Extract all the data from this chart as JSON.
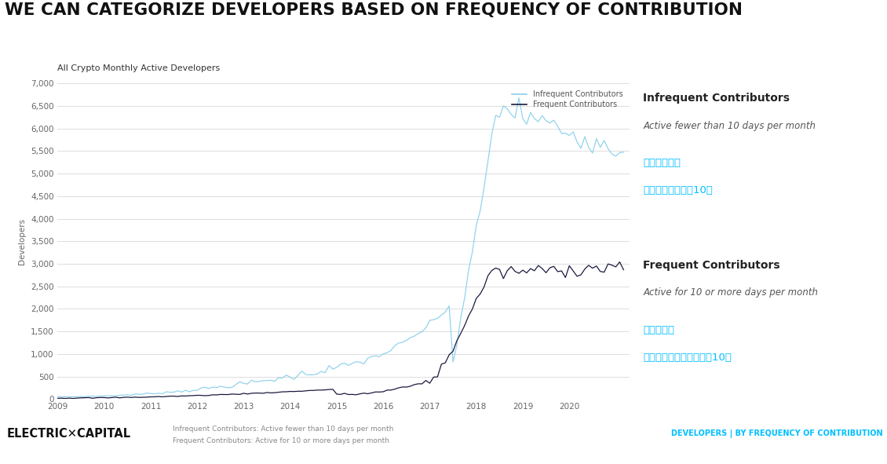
{
  "title": "WE CAN CATEGORIZE DEVELOPERS BASED ON FREQUENCY OF CONTRIBUTION",
  "subtitle": "All Crypto Monthly Active Developers",
  "ylabel": "Developers",
  "background_color": "#ffffff",
  "plot_bg_color": "#ffffff",
  "grid_color": "#dddddd",
  "infrequent_color": "#87CEEB",
  "frequent_color": "#1a1a3e",
  "legend_infrequent": "Infrequent Contributors",
  "legend_frequent": "Frequent Contributors",
  "ann_infrequent_title": "Infrequent Contributors",
  "ann_infrequent_sub": "Active fewer than 10 days per month",
  "ann_infrequent_cn1": "不频繁贡献者",
  "ann_infrequent_cn2": "每月活动频率少于10天",
  "ann_frequent_title": "Frequent Contributors",
  "ann_frequent_sub": "Active for 10 or more days per month",
  "ann_frequent_cn1": "频繁贡献者",
  "ann_frequent_cn2": "每月活动频率等于或超过10天",
  "footer_left": "ELECTRIC✕CAPITAL",
  "footer_mid1": "Infrequent Contributors: Active fewer than 10 days per month",
  "footer_mid2": "Frequent Contributors: Active for 10 or more days per month",
  "footer_right": "DEVELOPERS | BY FREQUENCY OF CONTRIBUTION",
  "cyan_color": "#00BFFF",
  "ann_title_color": "#222222",
  "ann_sub_color": "#555555",
  "ylim": [
    0,
    7000
  ],
  "yticks": [
    0,
    500,
    1000,
    1500,
    2000,
    2500,
    3000,
    3500,
    4000,
    4500,
    5000,
    5500,
    6000,
    6500,
    7000
  ],
  "xtick_labels": [
    "2009",
    "2010",
    "2011",
    "2012",
    "2013",
    "2014",
    "2015",
    "2016",
    "2017",
    "2018",
    "2019",
    "2020"
  ],
  "xtick_values": [
    2009,
    2010,
    2011,
    2012,
    2013,
    2014,
    2015,
    2016,
    2017,
    2018,
    2019,
    2020
  ]
}
